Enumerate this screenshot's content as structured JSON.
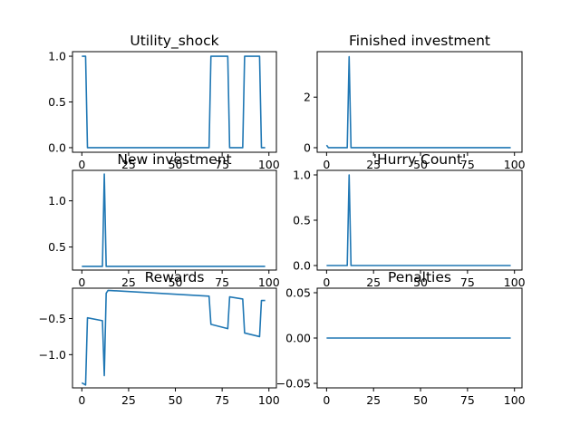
{
  "figure": {
    "background": "#ffffff",
    "line_color": "#1f77b4"
  },
  "chart_data": [
    {
      "type": "line",
      "title": "Utility_shock",
      "xlim": [
        -5,
        104
      ],
      "ylim": [
        -0.05,
        1.05
      ],
      "xticks": [
        0,
        25,
        50,
        75,
        100
      ],
      "yticks": [
        0.0,
        0.5,
        1.0
      ],
      "ytick_labels": [
        "0.0",
        "0.5",
        "1.0"
      ],
      "x": [
        0,
        2,
        3,
        68,
        69,
        78,
        79,
        86,
        87,
        95,
        96,
        98
      ],
      "y": [
        1,
        1,
        0,
        0,
        1,
        1,
        0,
        0,
        1,
        1,
        0,
        0
      ]
    },
    {
      "type": "line",
      "title": "Finished investment",
      "xlim": [
        -5,
        104
      ],
      "ylim": [
        -0.18,
        3.8
      ],
      "xticks": [
        0,
        25,
        50,
        75,
        100
      ],
      "yticks": [
        0,
        2
      ],
      "ytick_labels": [
        "0",
        "2"
      ],
      "x": [
        0,
        1,
        11,
        12,
        13,
        98
      ],
      "y": [
        0.1,
        0,
        0,
        3.6,
        0,
        0
      ]
    },
    {
      "type": "line",
      "title": "New investment",
      "xlim": [
        -5,
        104
      ],
      "ylim": [
        0.25,
        1.33
      ],
      "xticks": [
        0,
        25,
        50,
        75,
        100
      ],
      "yticks": [
        0.5,
        1.0
      ],
      "ytick_labels": [
        "0.5",
        "1.0"
      ],
      "x": [
        0,
        11,
        12,
        13,
        98
      ],
      "y": [
        0.29,
        0.29,
        1.29,
        0.29,
        0.29
      ]
    },
    {
      "type": "line",
      "title": "'Hurry Count'",
      "xlim": [
        -5,
        104
      ],
      "ylim": [
        -0.05,
        1.05
      ],
      "xticks": [
        0,
        25,
        50,
        75,
        100
      ],
      "yticks": [
        0.0,
        0.5,
        1.0
      ],
      "ytick_labels": [
        "0.0",
        "0.5",
        "1.0"
      ],
      "x": [
        0,
        11,
        12,
        13,
        98
      ],
      "y": [
        0,
        0,
        1,
        0,
        0
      ]
    },
    {
      "type": "line",
      "title": "Rewards",
      "xlim": [
        -5,
        104
      ],
      "ylim": [
        -1.46,
        -0.08
      ],
      "xticks": [
        0,
        25,
        50,
        75,
        100
      ],
      "yticks": [
        -1.0,
        -0.5
      ],
      "ytick_labels": [
        "−1.0",
        "−0.5"
      ],
      "x": [
        0,
        2,
        3,
        11,
        12,
        13,
        14,
        68,
        69,
        78,
        79,
        86,
        87,
        95,
        96,
        98
      ],
      "y": [
        -1.39,
        -1.42,
        -0.49,
        -0.53,
        -1.29,
        -0.15,
        -0.11,
        -0.19,
        -0.58,
        -0.64,
        -0.2,
        -0.23,
        -0.7,
        -0.75,
        -0.25,
        -0.25
      ]
    },
    {
      "type": "line",
      "title": "Penalties",
      "xlim": [
        -5,
        104
      ],
      "ylim": [
        -0.055,
        0.055
      ],
      "xticks": [
        0,
        25,
        50,
        75,
        100
      ],
      "yticks": [
        -0.05,
        0.0,
        0.05
      ],
      "ytick_labels": [
        "−0.05",
        "0.00",
        "0.05"
      ],
      "x": [
        0,
        98
      ],
      "y": [
        0,
        0
      ]
    }
  ]
}
